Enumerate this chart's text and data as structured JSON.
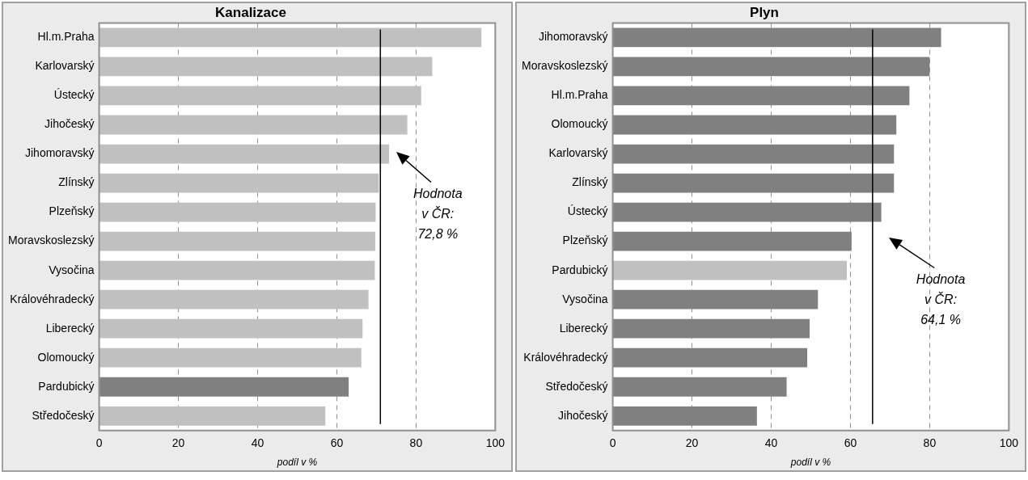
{
  "chart_data": [
    {
      "type": "bar",
      "title": "Kanalizace",
      "xlabel": "podíl v %",
      "orientation": "horizontal",
      "categories": [
        "Hl.m.Praha",
        "Karlovarský",
        "Ústecký",
        "Jihočeský",
        "Jihomoravský",
        "Zlínský",
        "Plzeňský",
        "Moravskoslezský",
        "Vysočina",
        "Královéhradecký",
        "Liberecký",
        "Olomoucký",
        "Pardubický",
        "Středočeský"
      ],
      "values": [
        96.5,
        84.1,
        81.3,
        77.8,
        73.2,
        70.6,
        69.8,
        69.7,
        69.6,
        68.0,
        66.5,
        66.2,
        63.0,
        57.1
      ],
      "colors": [
        "#c0c0c0",
        "#c0c0c0",
        "#c0c0c0",
        "#c0c0c0",
        "#c0c0c0",
        "#c0c0c0",
        "#c0c0c0",
        "#c0c0c0",
        "#c0c0c0",
        "#c0c0c0",
        "#c0c0c0",
        "#c0c0c0",
        "#808080",
        "#c0c0c0"
      ],
      "xlim": [
        0,
        100
      ],
      "xticks": [
        0,
        20,
        40,
        60,
        80,
        100
      ],
      "grid": "x",
      "legend": false,
      "ref_lines": [
        {
          "axis": "x",
          "value": 71,
          "color": "#000000"
        }
      ],
      "annotations": [
        "Hodnota\nv ČR:\n72,8 %"
      ]
    },
    {
      "type": "bar",
      "title": "Plyn",
      "xlabel": "podíl v %",
      "orientation": "horizontal",
      "categories": [
        "Jihomoravský",
        "Moravskoslezský",
        "Hl.m.Praha",
        "Olomoucký",
        "Karlovarský",
        "Zlínský",
        "Ústecký",
        "Plzeňský",
        "Pardubický",
        "Vysočina",
        "Liberecký",
        "Královéhradecký",
        "Středočeský",
        "Jihočeský"
      ],
      "values": [
        82.9,
        80.0,
        74.9,
        71.6,
        71.0,
        71.0,
        67.8,
        60.3,
        59.1,
        51.8,
        49.7,
        49.1,
        43.9,
        36.4
      ],
      "colors": [
        "#808080",
        "#808080",
        "#808080",
        "#808080",
        "#808080",
        "#808080",
        "#808080",
        "#808080",
        "#c0c0c0",
        "#808080",
        "#808080",
        "#808080",
        "#808080",
        "#808080"
      ],
      "xlim": [
        0,
        100
      ],
      "xticks": [
        0,
        20,
        40,
        60,
        80,
        100
      ],
      "grid": "x",
      "legend": false,
      "ref_lines": [
        {
          "axis": "x",
          "value": 65.6,
          "color": "#000000"
        }
      ],
      "annotations": [
        "Hodnota\nv ČR:\n64,1 %"
      ]
    }
  ]
}
